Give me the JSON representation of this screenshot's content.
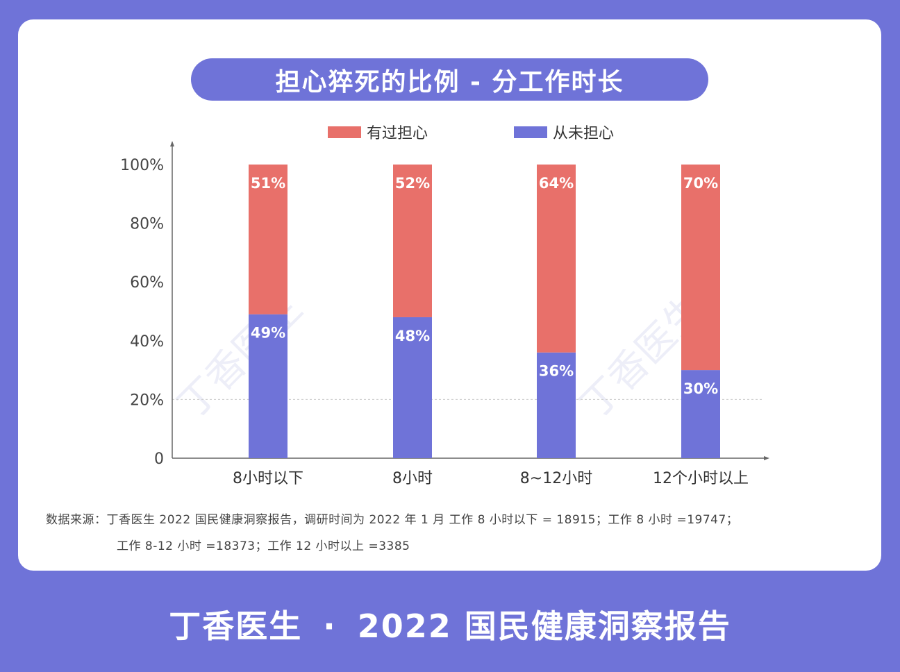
{
  "chart_data": {
    "type": "bar",
    "stacked": true,
    "title": "担心猝死的比例 - 分工作时长",
    "categories": [
      "8小时以下",
      "8小时",
      "8~12小时",
      "12个小时以上"
    ],
    "series": [
      {
        "name": "有过担心",
        "values": [
          51,
          52,
          64,
          70
        ],
        "labels": [
          "51%",
          "52%",
          "64%",
          "70%"
        ],
        "color": "#e8706a"
      },
      {
        "name": "从未担心",
        "values": [
          49,
          48,
          36,
          30
        ],
        "labels": [
          "49%",
          "48%",
          "36%",
          "30%"
        ],
        "color": "#6f73d8"
      }
    ],
    "ylim": [
      0,
      100
    ],
    "yticks": [
      0,
      20,
      40,
      60,
      80,
      100
    ],
    "ytick_labels": [
      "0",
      "20%",
      "40%",
      "60%",
      "80%",
      "100%"
    ],
    "legend": "top",
    "reference_line": 20
  },
  "source": {
    "line1": "数据来源：丁香医生 2022 国民健康洞察报告，调研时间为 2022 年 1 月 工作 8 小时以下 = 18915；工作 8 小时 =19747；",
    "line2": "工作 8-12 小时 =18373；工作 12 小时以上 =3385"
  },
  "footer": {
    "brand": "丁香医生",
    "dot": "·",
    "report": "2022 国民健康洞察报告"
  },
  "watermark": "丁香医生",
  "colors": {
    "background": "#6f73d8",
    "worried": "#e8706a",
    "never": "#6f73d8"
  }
}
